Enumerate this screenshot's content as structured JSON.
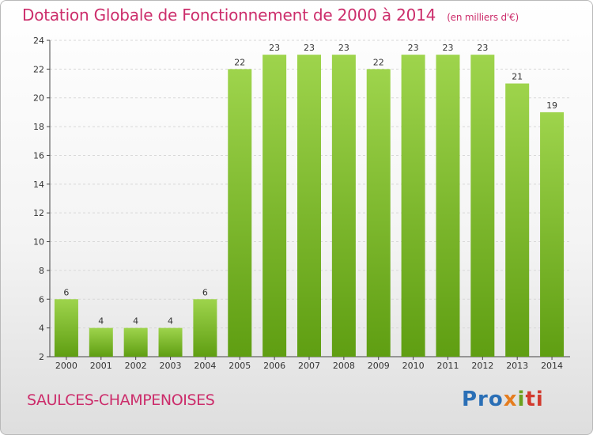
{
  "header": {
    "title": "Dotation Globale de Fonctionnement de 2000 à 2014",
    "subtitle": "(en milliers d'€)"
  },
  "footer": {
    "commune": "SAULCES-CHAMPENOISES",
    "logo": {
      "p1": "Pro",
      "p2": "x",
      "p3": "i",
      "p4": "ti"
    }
  },
  "colors": {
    "bar_top": "#9ed44c",
    "bar_bottom": "#5f9e12",
    "title": "#cc2d6b",
    "grid": "#d8d8d8"
  },
  "chart_data": {
    "type": "bar",
    "categories": [
      "2000",
      "2001",
      "2002",
      "2003",
      "2004",
      "2005",
      "2006",
      "2007",
      "2008",
      "2009",
      "2010",
      "2011",
      "2012",
      "2013",
      "2014"
    ],
    "values": [
      6,
      4,
      4,
      4,
      6,
      22,
      23,
      23,
      23,
      22,
      23,
      23,
      23,
      21,
      19
    ],
    "title": "Dotation Globale de Fonctionnement de 2000 à 2014",
    "subtitle": "(en milliers d'€)",
    "xlabel": "",
    "ylabel": "",
    "ylim": [
      2,
      24
    ],
    "yticks": [
      2,
      4,
      6,
      8,
      10,
      12,
      14,
      16,
      18,
      20,
      22,
      24
    ],
    "grid": true
  }
}
